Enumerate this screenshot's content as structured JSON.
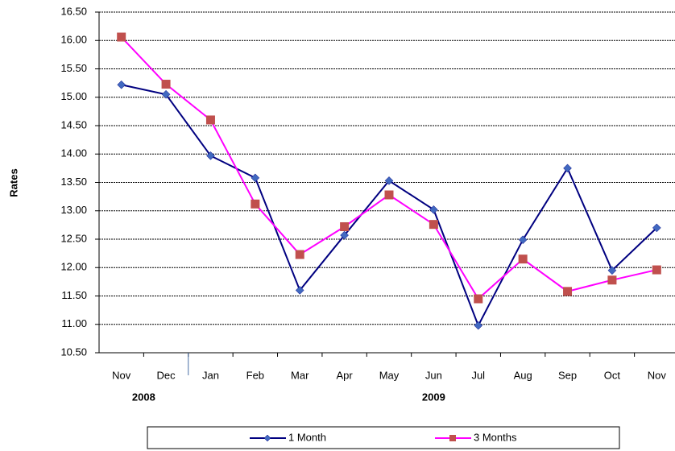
{
  "chart_data": {
    "type": "line",
    "y_label": "Rates",
    "categories": [
      "Nov",
      "Dec",
      "Jan",
      "Feb",
      "Mar",
      "Apr",
      "May",
      "Jun",
      "Jul",
      "Aug",
      "Sep",
      "Oct",
      "Nov"
    ],
    "groups": [
      {
        "label": "2008",
        "count": 2
      },
      {
        "label": "2009",
        "count": 11
      }
    ],
    "series": [
      {
        "name": "1 Month",
        "color": "#000080",
        "marker": "diamond",
        "marker_color": "#4169c0",
        "values": [
          15.22,
          15.05,
          13.97,
          13.58,
          11.6,
          12.57,
          13.53,
          13.02,
          10.98,
          12.49,
          13.75,
          11.95,
          12.7
        ]
      },
      {
        "name": "3 Months",
        "color": "#ff00ff",
        "marker": "square",
        "marker_color": "#c0504d",
        "values": [
          16.06,
          15.23,
          14.6,
          13.12,
          12.23,
          12.72,
          13.28,
          12.76,
          11.45,
          12.15,
          11.58,
          11.78,
          11.96
        ]
      }
    ],
    "ylim": [
      10.5,
      16.5
    ],
    "yticks": [
      {
        "value": 10.5,
        "label": "10.50"
      },
      {
        "value": 11,
        "label": "11.00"
      },
      {
        "value": 11.5,
        "label": "11.50"
      },
      {
        "value": 12,
        "label": "12.00"
      },
      {
        "value": 12.5,
        "label": "12.50"
      },
      {
        "value": 13,
        "label": "13.00"
      },
      {
        "value": 13.5,
        "label": "13.50"
      },
      {
        "value": 14,
        "label": "14.00"
      },
      {
        "value": 14.5,
        "label": "14.50"
      },
      {
        "value": 15,
        "label": "15.00"
      },
      {
        "value": 15.5,
        "label": "15.50"
      },
      {
        "value": 16,
        "label": "16.00"
      },
      {
        "value": 16.5,
        "label": "16.50"
      }
    ],
    "grid": true,
    "legend": "bottom"
  }
}
